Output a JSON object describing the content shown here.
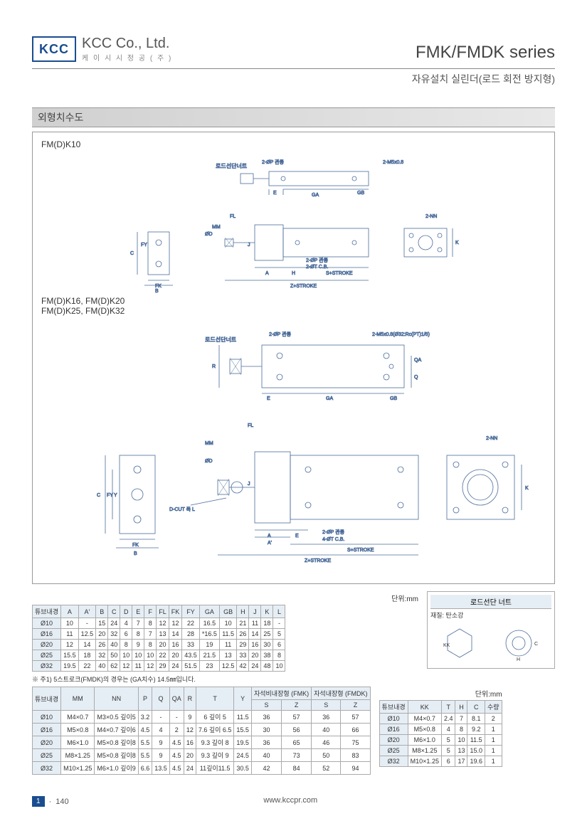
{
  "header": {
    "logo": "KCC",
    "company": "KCC Co., Ltd.",
    "company_sub": "케 이 시 시 정 공 ( 주 )",
    "series": "FMK/FMDK series",
    "subtitle": "자유설치 실린더(로드 회전 방지형)"
  },
  "section_title": "외형치수도",
  "diagram1_label": "FM(D)K10",
  "diagram2_label": "FM(D)K16, FM(D)K20\nFM(D)K25, FM(D)K32",
  "diagram_annotations": {
    "rod_nut": "로드선단너트",
    "phi_p": "2-ØP 관통",
    "m5": "2-M5x0.8",
    "nn": "2-NN",
    "phi_t": "2-ØT C.B.",
    "s_stroke": "S+STROKE",
    "z_stroke": "Z+STROKE",
    "dcut": "D-CUT 폭 L",
    "m5_32": "2-M5x0.8(Ø32:Rc(PT)1/8)",
    "phi_t4": "4-ØT C.B."
  },
  "unit_label": "단위:mm",
  "table1": {
    "columns": [
      "튜브내경",
      "A",
      "A'",
      "B",
      "C",
      "D",
      "E",
      "F",
      "FL",
      "FK",
      "FY",
      "GA",
      "GB",
      "H",
      "J",
      "K",
      "L"
    ],
    "rows": [
      [
        "Ø10",
        "10",
        "-",
        "15",
        "24",
        "4",
        "7",
        "8",
        "12",
        "12",
        "22",
        "16.5",
        "10",
        "21",
        "11",
        "18",
        "-"
      ],
      [
        "Ø16",
        "11",
        "12.5",
        "20",
        "32",
        "6",
        "8",
        "7",
        "13",
        "14",
        "28",
        "*16.5",
        "11.5",
        "26",
        "14",
        "25",
        "5"
      ],
      [
        "Ø20",
        "12",
        "14",
        "26",
        "40",
        "8",
        "9",
        "8",
        "20",
        "16",
        "33",
        "19",
        "11",
        "29",
        "16",
        "30",
        "6"
      ],
      [
        "Ø25",
        "15.5",
        "18",
        "32",
        "50",
        "10",
        "10",
        "10",
        "22",
        "20",
        "43.5",
        "21.5",
        "13",
        "33",
        "20",
        "38",
        "8"
      ],
      [
        "Ø32",
        "19.5",
        "22",
        "40",
        "62",
        "12",
        "11",
        "12",
        "29",
        "24",
        "51.5",
        "23",
        "12.5",
        "42",
        "24",
        "48",
        "10"
      ]
    ]
  },
  "footnote": "※ 주1) 5스트로크(FMDK)의 경우는 (GA치수) 14.5㎜입니다.",
  "table2": {
    "columns": [
      "튜브내경",
      "MM",
      "NN",
      "P",
      "Q",
      "QA",
      "R",
      "T",
      "Y"
    ],
    "sub_cols": [
      "자석비내장형 (FMK)",
      "자석내장형 (FMDK)"
    ],
    "sub_sz": [
      "S",
      "Z",
      "S",
      "Z"
    ],
    "rows": [
      [
        "Ø10",
        "M4×0.7",
        "M3×0.5 깊이5",
        "3.2",
        "-",
        "-",
        "9",
        "6 깊이 5",
        "11.5",
        "36",
        "57",
        "36",
        "57"
      ],
      [
        "Ø16",
        "M5×0.8",
        "M4×0.7 깊이6",
        "4.5",
        "4",
        "2",
        "12",
        "7.6 깊이 6.5",
        "15.5",
        "30",
        "56",
        "40",
        "66"
      ],
      [
        "Ø20",
        "M6×1.0",
        "M5×0.8 깊이8",
        "5.5",
        "9",
        "4.5",
        "16",
        "9.3 깊이 8",
        "19.5",
        "36",
        "65",
        "46",
        "75"
      ],
      [
        "Ø25",
        "M8×1.25",
        "M5×0.8 깊이8",
        "5.5",
        "9",
        "4.5",
        "20",
        "9.3 깊이 9",
        "24.5",
        "40",
        "73",
        "50",
        "83"
      ],
      [
        "Ø32",
        "M10×1.25",
        "M6×1.0 깊이9",
        "6.6",
        "13.5",
        "4.5",
        "24",
        "11깊이11.5",
        "30.5",
        "42",
        "84",
        "52",
        "94"
      ]
    ]
  },
  "nut_box": {
    "title": "로드선단 너트",
    "material": "재질: 탄소강"
  },
  "table3": {
    "columns": [
      "튜브내경",
      "KK",
      "T",
      "H",
      "C",
      "수량"
    ],
    "rows": [
      [
        "Ø10",
        "M4×0.7",
        "2.4",
        "7",
        "8.1",
        "2"
      ],
      [
        "Ø16",
        "M5×0.8",
        "4",
        "8",
        "9.2",
        "1"
      ],
      [
        "Ø20",
        "M6×1.0",
        "5",
        "10",
        "11.5",
        "1"
      ],
      [
        "Ø25",
        "M8×1.25",
        "5",
        "13",
        "15.0",
        "1"
      ],
      [
        "Ø32",
        "M10×1.25",
        "6",
        "17",
        "19.6",
        "1"
      ]
    ]
  },
  "footer": {
    "page_box": "1",
    "page_num": "140",
    "url": "www.kccpr.com"
  },
  "colors": {
    "brand_blue": "#1a4d8f",
    "header_bg": "#e6eef5",
    "border": "#aaaaaa",
    "diagram_stroke": "#4a6b9a"
  }
}
